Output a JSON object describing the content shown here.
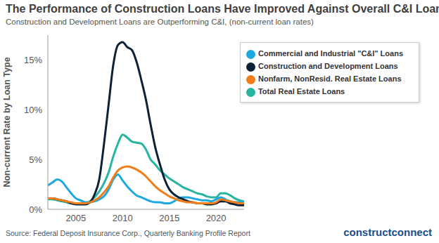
{
  "chart_data": {
    "type": "line",
    "title": "The Performance of Construction Loans Have Improved Against Overall C&I Loans",
    "subtitle": "Construction and Development Loans are Outperforming C&I, (non-current loan rates)",
    "y_label": "Non-current Rate by Loan Type",
    "source": "Source: Federal Deposit Insurance Corp., Quarterly Banking Profile Report",
    "brand": "constructconnect",
    "x": [
      2002,
      2002.5,
      2003,
      2003.5,
      2004,
      2004.5,
      2005,
      2005.5,
      2006,
      2006.5,
      2007,
      2007.5,
      2008,
      2008.5,
      2009,
      2009.5,
      2010,
      2010.5,
      2011,
      2011.5,
      2012,
      2012.5,
      2013,
      2013.5,
      2014,
      2014.5,
      2015,
      2015.5,
      2016,
      2016.5,
      2017,
      2017.5,
      2018,
      2018.5,
      2019,
      2019.5,
      2020,
      2020.5,
      2021,
      2021.5,
      2022,
      2022.5,
      2023
    ],
    "series": [
      {
        "name": "Total Real Estate Loans",
        "color": "#26b5a0",
        "values": [
          1.0,
          1.0,
          0.9,
          0.8,
          0.7,
          0.6,
          0.6,
          0.6,
          0.6,
          0.8,
          1.2,
          1.8,
          2.6,
          3.7,
          5.3,
          6.6,
          7.5,
          7.2,
          6.8,
          6.7,
          6.6,
          6.0,
          5.0,
          4.5,
          3.9,
          3.5,
          3.1,
          2.8,
          2.5,
          2.2,
          2.0,
          1.8,
          1.6,
          1.5,
          1.3,
          1.2,
          1.2,
          1.6,
          1.6,
          1.4,
          1.1,
          0.9,
          0.8
        ]
      },
      {
        "name": "Commercial and Industrial \"C&I\" Loans",
        "color": "#1ea8e0",
        "values": [
          2.4,
          2.7,
          3.0,
          2.8,
          2.2,
          1.6,
          1.1,
          0.9,
          0.7,
          0.7,
          0.8,
          1.0,
          1.3,
          2.0,
          3.0,
          3.5,
          2.9,
          2.3,
          1.8,
          1.4,
          1.2,
          1.0,
          0.8,
          0.7,
          0.7,
          0.6,
          0.6,
          0.8,
          1.1,
          1.2,
          1.2,
          1.1,
          1.0,
          0.9,
          0.9,
          0.8,
          1.0,
          1.2,
          1.0,
          0.8,
          0.7,
          0.7,
          0.7
        ]
      },
      {
        "name": "Construction and Development Loans",
        "color": "#0d2236",
        "values": [
          1.1,
          1.1,
          1.0,
          0.9,
          0.8,
          0.6,
          0.5,
          0.5,
          0.5,
          0.7,
          1.5,
          3.0,
          6.5,
          10.5,
          14.5,
          16.5,
          16.8,
          16.3,
          16.0,
          14.8,
          13.0,
          11.0,
          8.5,
          6.2,
          4.5,
          3.0,
          2.0,
          1.5,
          1.2,
          1.0,
          0.8,
          0.7,
          0.6,
          0.6,
          0.5,
          0.5,
          0.6,
          0.8,
          0.8,
          0.6,
          0.5,
          0.4,
          0.4
        ]
      },
      {
        "name": "Nonfarm, NonResid. Real Estate Loans",
        "color": "#f07d1a",
        "values": [
          1.1,
          1.1,
          1.0,
          0.9,
          0.8,
          0.7,
          0.6,
          0.6,
          0.6,
          0.7,
          0.9,
          1.2,
          1.7,
          2.3,
          3.2,
          3.9,
          4.2,
          4.3,
          4.2,
          4.0,
          3.7,
          3.3,
          2.8,
          2.3,
          1.9,
          1.6,
          1.3,
          1.1,
          0.9,
          0.8,
          0.7,
          0.7,
          0.6,
          0.6,
          0.6,
          0.6,
          0.7,
          1.0,
          0.9,
          0.8,
          0.7,
          0.6,
          0.6
        ]
      }
    ],
    "xlim": [
      2002,
      2023
    ],
    "xticks": [
      2005,
      2010,
      2015,
      2020
    ],
    "ylim": [
      0,
      17.5
    ],
    "yticks": [
      {
        "value": 0,
        "label": "0%"
      },
      {
        "value": 5,
        "label": "5%"
      },
      {
        "value": 10,
        "label": "10%"
      },
      {
        "value": 15,
        "label": "15%"
      }
    ],
    "grid": false,
    "legend": "top-right"
  }
}
